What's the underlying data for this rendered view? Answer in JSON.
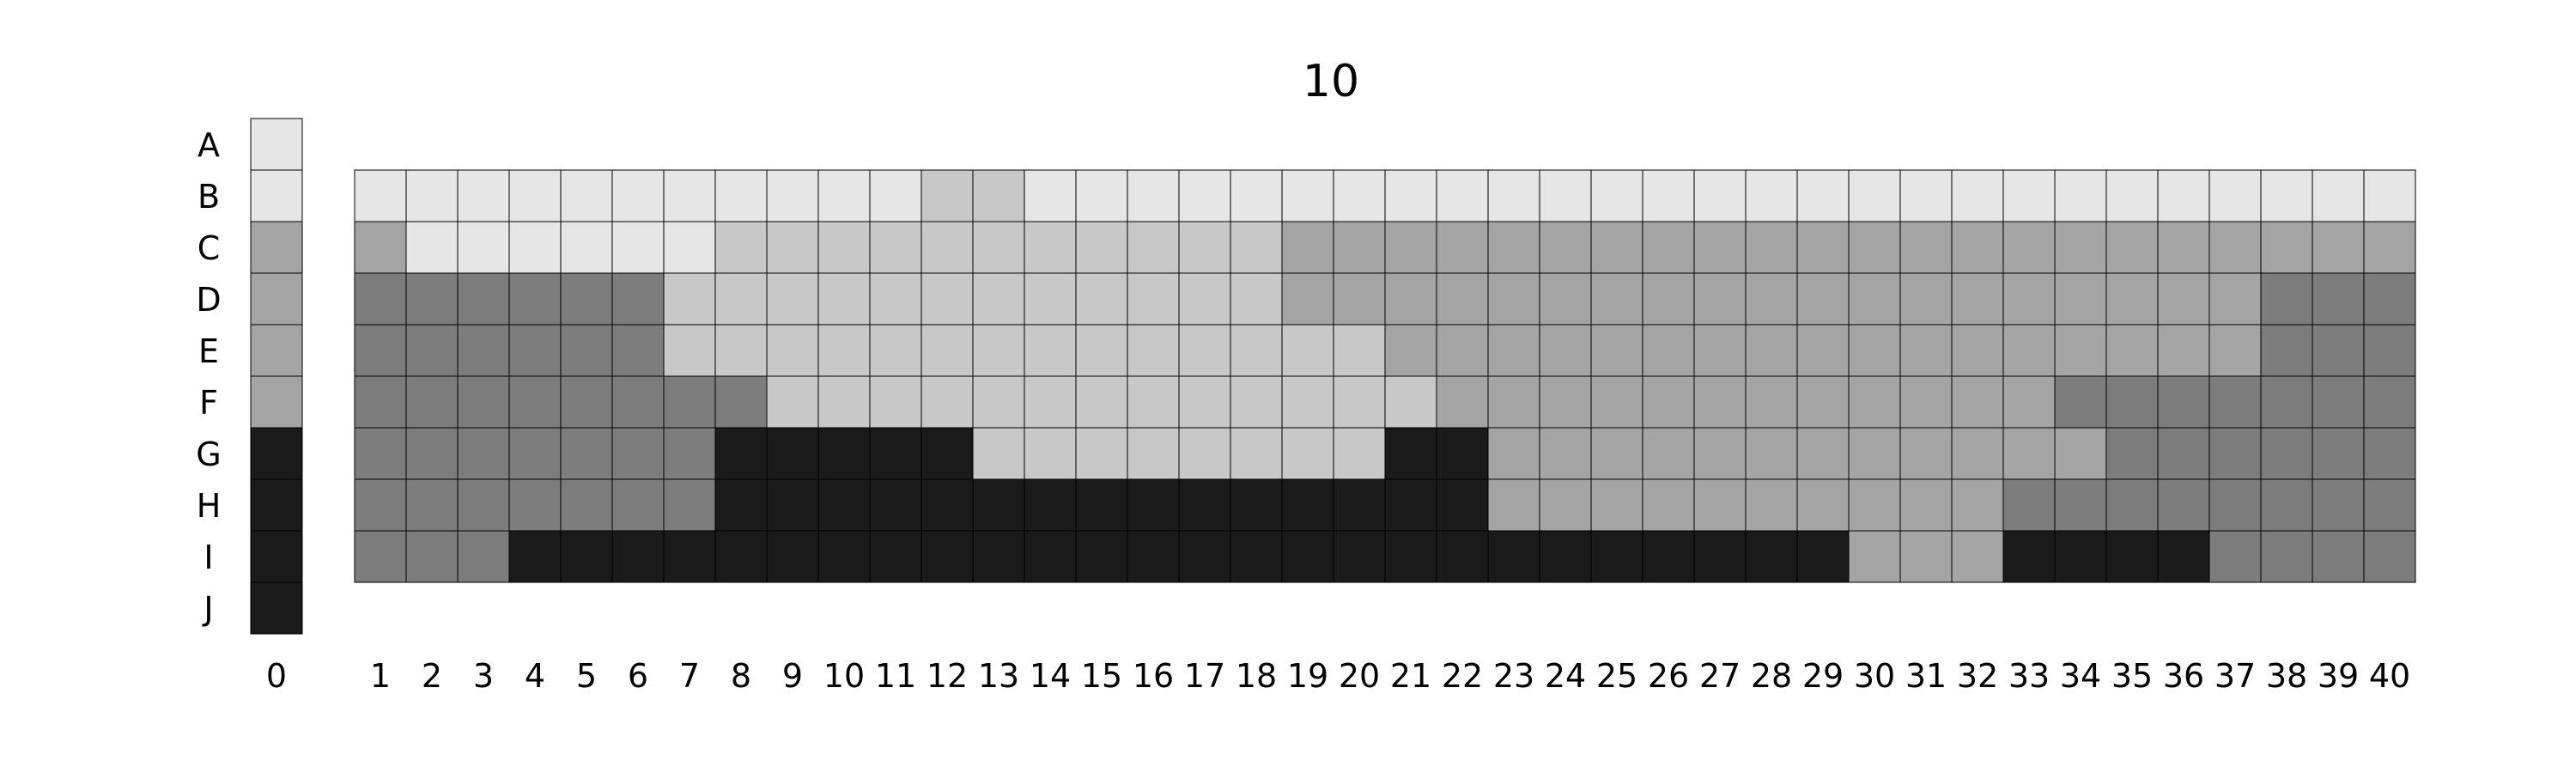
{
  "chart_data": {
    "type": "heatmap",
    "title": "10",
    "xlabel": "",
    "ylabel": "",
    "grid": true,
    "legend": "none",
    "rows": [
      "A",
      "B",
      "C",
      "D",
      "E",
      "F",
      "G",
      "H",
      "I",
      "J"
    ],
    "reference_column": {
      "label": "0",
      "levels": [
        0,
        0,
        2,
        2,
        2,
        2,
        4,
        4,
        4,
        4
      ]
    },
    "columns": [
      "1",
      "2",
      "3",
      "4",
      "5",
      "6",
      "7",
      "8",
      "9",
      "10",
      "11",
      "12",
      "13",
      "14",
      "15",
      "16",
      "17",
      "18",
      "19",
      "20",
      "21",
      "22",
      "23",
      "24",
      "25",
      "26",
      "27",
      "28",
      "29",
      "30",
      "31",
      "32",
      "33",
      "34",
      "35",
      "36",
      "37",
      "38",
      "39",
      "40"
    ],
    "matrix_rows": [
      "B",
      "C",
      "D",
      "E",
      "F",
      "G",
      "H",
      "I"
    ],
    "matrix": [
      [
        0,
        0,
        0,
        0,
        0,
        0,
        0,
        0,
        0,
        0,
        0,
        1,
        1,
        0,
        0,
        0,
        0,
        0,
        0,
        0,
        0,
        0,
        0,
        0,
        0,
        0,
        0,
        0,
        0,
        0,
        0,
        0,
        0,
        0,
        0,
        0,
        0,
        0,
        0,
        0
      ],
      [
        2,
        0,
        0,
        0,
        0,
        0,
        0,
        1,
        1,
        1,
        1,
        1,
        1,
        1,
        1,
        1,
        1,
        1,
        2,
        2,
        2,
        2,
        2,
        2,
        2,
        2,
        2,
        2,
        2,
        2,
        2,
        2,
        2,
        2,
        2,
        2,
        2,
        2,
        2,
        2
      ],
      [
        3,
        3,
        3,
        3,
        3,
        3,
        1,
        1,
        1,
        1,
        1,
        1,
        1,
        1,
        1,
        1,
        1,
        1,
        2,
        2,
        2,
        2,
        2,
        2,
        2,
        2,
        2,
        2,
        2,
        2,
        2,
        2,
        2,
        2,
        2,
        2,
        2,
        3,
        3,
        3
      ],
      [
        3,
        3,
        3,
        3,
        3,
        3,
        1,
        1,
        1,
        1,
        1,
        1,
        1,
        1,
        1,
        1,
        1,
        1,
        1,
        1,
        2,
        2,
        2,
        2,
        2,
        2,
        2,
        2,
        2,
        2,
        2,
        2,
        2,
        2,
        2,
        2,
        2,
        3,
        3,
        3
      ],
      [
        3,
        3,
        3,
        3,
        3,
        3,
        3,
        3,
        1,
        1,
        1,
        1,
        1,
        1,
        1,
        1,
        1,
        1,
        1,
        1,
        1,
        2,
        2,
        2,
        2,
        2,
        2,
        2,
        2,
        2,
        2,
        2,
        2,
        3,
        3,
        3,
        3,
        3,
        3,
        3
      ],
      [
        3,
        3,
        3,
        3,
        3,
        3,
        3,
        4,
        4,
        4,
        4,
        4,
        1,
        1,
        1,
        1,
        1,
        1,
        1,
        1,
        4,
        4,
        2,
        2,
        2,
        2,
        2,
        2,
        2,
        2,
        2,
        2,
        2,
        2,
        3,
        3,
        3,
        3,
        3,
        3
      ],
      [
        3,
        3,
        3,
        3,
        3,
        3,
        3,
        4,
        4,
        4,
        4,
        4,
        4,
        4,
        4,
        4,
        4,
        4,
        4,
        4,
        4,
        4,
        2,
        2,
        2,
        2,
        2,
        2,
        2,
        2,
        2,
        2,
        3,
        3,
        3,
        3,
        3,
        3,
        3,
        3
      ],
      [
        3,
        3,
        3,
        4,
        4,
        4,
        4,
        4,
        4,
        4,
        4,
        4,
        4,
        4,
        4,
        4,
        4,
        4,
        4,
        4,
        4,
        4,
        4,
        4,
        4,
        4,
        4,
        4,
        4,
        2,
        2,
        2,
        4,
        4,
        4,
        4,
        3,
        3,
        3,
        3
      ]
    ],
    "level_colors": [
      "#e6e6e6",
      "#c8c8c8",
      "#a4a4a4",
      "#7c7c7c",
      "#1a1a1a"
    ]
  }
}
